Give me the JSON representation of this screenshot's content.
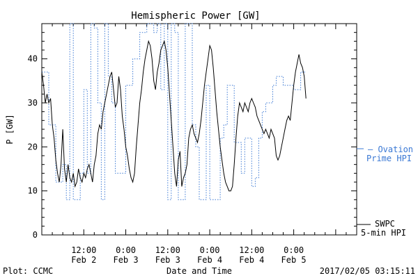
{
  "chart_data": {
    "type": "line",
    "title": "Hemispheric Power [GW]",
    "ylabel": "P [GW]",
    "xlabel": "Date and Time",
    "ylim": [
      0,
      48
    ],
    "xlim_hours": [
      0,
      90
    ],
    "yticks": [
      0,
      10,
      20,
      30,
      40
    ],
    "xticks": [
      {
        "hour": 12,
        "time": "12:00",
        "date": "Feb 2"
      },
      {
        "hour": 24,
        "time": "0:00",
        "date": "Feb 3"
      },
      {
        "hour": 36,
        "time": "12:00",
        "date": "Feb 3"
      },
      {
        "hour": 48,
        "time": "0:00",
        "date": "Feb 4"
      },
      {
        "hour": 60,
        "time": "12:00",
        "date": "Feb 4"
      },
      {
        "hour": 72,
        "time": "0:00",
        "date": "Feb 5"
      }
    ],
    "grid": false,
    "legend_position": "right",
    "series": [
      {
        "name": "SWPC 5-min HPI",
        "legend_lines": [
          "SWPC",
          "5-min HPI"
        ],
        "color": "#000000",
        "style": "solid",
        "points": [
          [
            0,
            37
          ],
          [
            0.5,
            34
          ],
          [
            1,
            30
          ],
          [
            1.5,
            32
          ],
          [
            2,
            30
          ],
          [
            2.5,
            31
          ],
          [
            3,
            25
          ],
          [
            3.5,
            22
          ],
          [
            4,
            17
          ],
          [
            4.5,
            14
          ],
          [
            5,
            12
          ],
          [
            5.5,
            16
          ],
          [
            6,
            24
          ],
          [
            6.5,
            15
          ],
          [
            7,
            12
          ],
          [
            7.5,
            16
          ],
          [
            8,
            13
          ],
          [
            8.5,
            12
          ],
          [
            9,
            14
          ],
          [
            9.5,
            11
          ],
          [
            10,
            12
          ],
          [
            10.5,
            15
          ],
          [
            11,
            13
          ],
          [
            11.5,
            12
          ],
          [
            12,
            14
          ],
          [
            12.5,
            13
          ],
          [
            13,
            15
          ],
          [
            13.5,
            16
          ],
          [
            14,
            14
          ],
          [
            14.5,
            12
          ],
          [
            15,
            16
          ],
          [
            15.5,
            18
          ],
          [
            16,
            23
          ],
          [
            16.5,
            25
          ],
          [
            17,
            24
          ],
          [
            17.5,
            28
          ],
          [
            18,
            30
          ],
          [
            18.5,
            32
          ],
          [
            19,
            34
          ],
          [
            19.5,
            36
          ],
          [
            20,
            37
          ],
          [
            20.5,
            33
          ],
          [
            21,
            29
          ],
          [
            21.5,
            30
          ],
          [
            22,
            36
          ],
          [
            22.5,
            33
          ],
          [
            23,
            27
          ],
          [
            23.5,
            24
          ],
          [
            24,
            20
          ],
          [
            24.5,
            18
          ],
          [
            25,
            15
          ],
          [
            25.5,
            13
          ],
          [
            26,
            12
          ],
          [
            26.5,
            14
          ],
          [
            27,
            20
          ],
          [
            27.5,
            25
          ],
          [
            28,
            30
          ],
          [
            28.5,
            33
          ],
          [
            29,
            37
          ],
          [
            29.5,
            40
          ],
          [
            30,
            42
          ],
          [
            30.5,
            44
          ],
          [
            31,
            43
          ],
          [
            31.5,
            40
          ],
          [
            32,
            35
          ],
          [
            32.5,
            33
          ],
          [
            33,
            37
          ],
          [
            33.5,
            39
          ],
          [
            34,
            42
          ],
          [
            34.5,
            43
          ],
          [
            35,
            44
          ],
          [
            35.5,
            42
          ],
          [
            36,
            38
          ],
          [
            36.5,
            32
          ],
          [
            37,
            26
          ],
          [
            37.5,
            20
          ],
          [
            38,
            14
          ],
          [
            38.5,
            11
          ],
          [
            39,
            17
          ],
          [
            39.5,
            19
          ],
          [
            40,
            11
          ],
          [
            40.5,
            13
          ],
          [
            41,
            14
          ],
          [
            41.5,
            16
          ],
          [
            42,
            22
          ],
          [
            42.5,
            24
          ],
          [
            43,
            25
          ],
          [
            43.5,
            23
          ],
          [
            44,
            22
          ],
          [
            44.5,
            21
          ],
          [
            45,
            23
          ],
          [
            45.5,
            26
          ],
          [
            46,
            30
          ],
          [
            46.5,
            34
          ],
          [
            47,
            37
          ],
          [
            47.5,
            40
          ],
          [
            48,
            43
          ],
          [
            48.5,
            42
          ],
          [
            49,
            38
          ],
          [
            49.5,
            33
          ],
          [
            50,
            28
          ],
          [
            50.5,
            24
          ],
          [
            51,
            20
          ],
          [
            51.5,
            17
          ],
          [
            52,
            14
          ],
          [
            52.5,
            12
          ],
          [
            53,
            11
          ],
          [
            53.5,
            10
          ],
          [
            54,
            10
          ],
          [
            54.5,
            11
          ],
          [
            55,
            16
          ],
          [
            55.5,
            22
          ],
          [
            56,
            27
          ],
          [
            56.5,
            30
          ],
          [
            57,
            29
          ],
          [
            57.5,
            28
          ],
          [
            58,
            30
          ],
          [
            58.5,
            29
          ],
          [
            59,
            28
          ],
          [
            59.5,
            30
          ],
          [
            60,
            31
          ],
          [
            60.5,
            30
          ],
          [
            61,
            29
          ],
          [
            61.5,
            27
          ],
          [
            62,
            26
          ],
          [
            62.5,
            25
          ],
          [
            63,
            24
          ],
          [
            63.5,
            23
          ],
          [
            64,
            24
          ],
          [
            64.5,
            23
          ],
          [
            65,
            22
          ],
          [
            65.5,
            24
          ],
          [
            66,
            23
          ],
          [
            66.5,
            22
          ],
          [
            67,
            18
          ],
          [
            67.5,
            17
          ],
          [
            68,
            18
          ],
          [
            68.5,
            20
          ],
          [
            69,
            22
          ],
          [
            69.5,
            24
          ],
          [
            70,
            26
          ],
          [
            70.5,
            27
          ],
          [
            71,
            26
          ],
          [
            71.5,
            30
          ],
          [
            72,
            34
          ],
          [
            72.5,
            37
          ],
          [
            73,
            39
          ],
          [
            73.5,
            41
          ],
          [
            74,
            39
          ],
          [
            74.5,
            38
          ],
          [
            75,
            36
          ],
          [
            75.5,
            31
          ]
        ]
      },
      {
        "name": "Ovation Prime HPI",
        "legend_lines": [
          "— Ovation",
          "Prime HPI"
        ],
        "color": "#3a78d4",
        "style": "dotted",
        "points": [
          [
            0,
            37
          ],
          [
            2,
            37
          ],
          [
            2,
            25
          ],
          [
            4,
            25
          ],
          [
            4,
            12
          ],
          [
            6,
            12
          ],
          [
            6,
            16
          ],
          [
            7,
            16
          ],
          [
            7,
            8
          ],
          [
            8,
            8
          ],
          [
            8,
            48
          ],
          [
            9,
            48
          ],
          [
            9,
            8
          ],
          [
            11,
            8
          ],
          [
            11,
            14
          ],
          [
            12,
            14
          ],
          [
            12,
            33
          ],
          [
            13,
            33
          ],
          [
            13,
            14
          ],
          [
            14,
            14
          ],
          [
            14,
            48
          ],
          [
            15,
            48
          ],
          [
            15,
            47
          ],
          [
            16,
            47
          ],
          [
            16,
            30
          ],
          [
            17,
            30
          ],
          [
            17,
            8
          ],
          [
            18,
            8
          ],
          [
            18,
            48
          ],
          [
            19,
            48
          ],
          [
            19,
            36
          ],
          [
            20,
            36
          ],
          [
            20,
            30
          ],
          [
            21,
            30
          ],
          [
            21,
            14
          ],
          [
            24,
            14
          ],
          [
            24,
            34
          ],
          [
            26,
            34
          ],
          [
            26,
            40
          ],
          [
            28,
            40
          ],
          [
            28,
            46
          ],
          [
            30,
            46
          ],
          [
            30,
            48
          ],
          [
            32,
            48
          ],
          [
            32,
            46
          ],
          [
            33,
            46
          ],
          [
            33,
            48
          ],
          [
            34,
            48
          ],
          [
            34,
            33
          ],
          [
            35,
            33
          ],
          [
            35,
            48
          ],
          [
            36,
            48
          ],
          [
            36,
            8
          ],
          [
            37,
            8
          ],
          [
            37,
            48
          ],
          [
            38,
            48
          ],
          [
            38,
            46
          ],
          [
            39,
            46
          ],
          [
            39,
            8
          ],
          [
            41,
            8
          ],
          [
            41,
            48
          ],
          [
            43,
            48
          ],
          [
            43,
            25
          ],
          [
            44,
            25
          ],
          [
            44,
            20
          ],
          [
            45,
            20
          ],
          [
            45,
            8
          ],
          [
            47,
            8
          ],
          [
            47,
            34
          ],
          [
            48,
            34
          ],
          [
            48,
            8
          ],
          [
            51,
            8
          ],
          [
            51,
            22
          ],
          [
            52,
            22
          ],
          [
            52,
            25
          ],
          [
            53,
            25
          ],
          [
            53,
            34
          ],
          [
            55,
            34
          ],
          [
            55,
            21
          ],
          [
            57,
            21
          ],
          [
            57,
            14
          ],
          [
            58,
            14
          ],
          [
            58,
            22
          ],
          [
            60,
            22
          ],
          [
            60,
            11
          ],
          [
            61,
            11
          ],
          [
            61,
            13
          ],
          [
            62,
            13
          ],
          [
            62,
            22
          ],
          [
            63,
            22
          ],
          [
            63,
            28
          ],
          [
            64,
            28
          ],
          [
            64,
            30
          ],
          [
            66,
            30
          ],
          [
            66,
            34
          ],
          [
            67,
            34
          ],
          [
            67,
            36
          ],
          [
            69,
            36
          ],
          [
            69,
            34
          ],
          [
            72,
            34
          ],
          [
            72,
            33
          ],
          [
            74,
            33
          ],
          [
            74,
            37
          ],
          [
            75.5,
            37
          ]
        ]
      }
    ]
  },
  "footer": {
    "left": "Plot: CCMC",
    "right": "2017/02/05 03:15:11"
  }
}
